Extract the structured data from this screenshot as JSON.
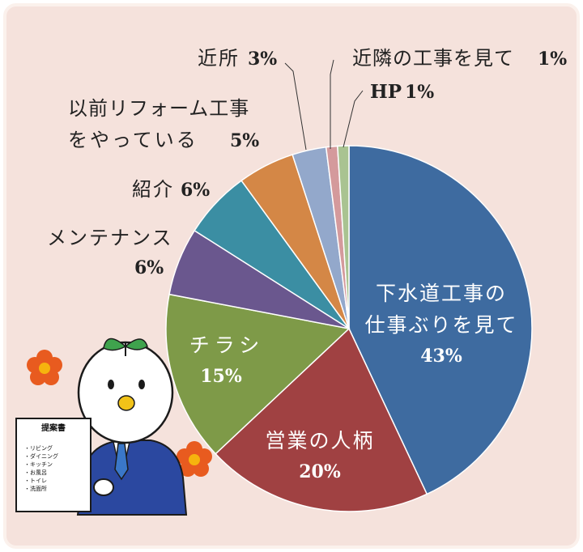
{
  "colors": {
    "background": "#f5e2dc",
    "border": "#fbf1ec"
  },
  "chart_data": {
    "type": "pie",
    "title": "",
    "slices": [
      {
        "key": "sewer",
        "color": "#3e6ba0",
        "value": 43,
        "lines": [
          "下水道工事の",
          "仕事ぶりを見て"
        ],
        "pct": "43%"
      },
      {
        "key": "personality",
        "color": "#a04142",
        "value": 20,
        "lines": [
          "営業の人柄"
        ],
        "pct": "20%"
      },
      {
        "key": "flyer",
        "color": "#7e9a48",
        "value": 15,
        "lines": [
          "チラシ"
        ],
        "pct": "15%"
      },
      {
        "key": "maintenance",
        "color": "#6a578e",
        "value": 6,
        "lines": [
          "メンテナンス"
        ],
        "pct": "6%"
      },
      {
        "key": "referral",
        "color": "#3b8ea3",
        "value": 6,
        "lines": [
          "紹介"
        ],
        "pct": "6%"
      },
      {
        "key": "previous",
        "color": "#d48746",
        "value": 5,
        "lines": [
          "以前リフォーム工事",
          "をやっている"
        ],
        "pct": "5%"
      },
      {
        "key": "nearby",
        "color": "#93a8cb",
        "value": 3,
        "lines": [
          "近所"
        ],
        "pct": "3%"
      },
      {
        "key": "neighbor",
        "color": "#d49a9c",
        "value": 1,
        "lines": [
          "近隣の工事を見て"
        ],
        "pct": "1%"
      },
      {
        "key": "hp",
        "color": "#a9c391",
        "value": 1,
        "lines": [
          "HP"
        ],
        "pct": "1%"
      }
    ]
  },
  "illustration": {
    "board_title": "提案書",
    "board_items": [
      "・リビング",
      "・ダイニング",
      "・キッチン",
      "・お風呂",
      "・トイレ",
      "・洗面所"
    ]
  }
}
